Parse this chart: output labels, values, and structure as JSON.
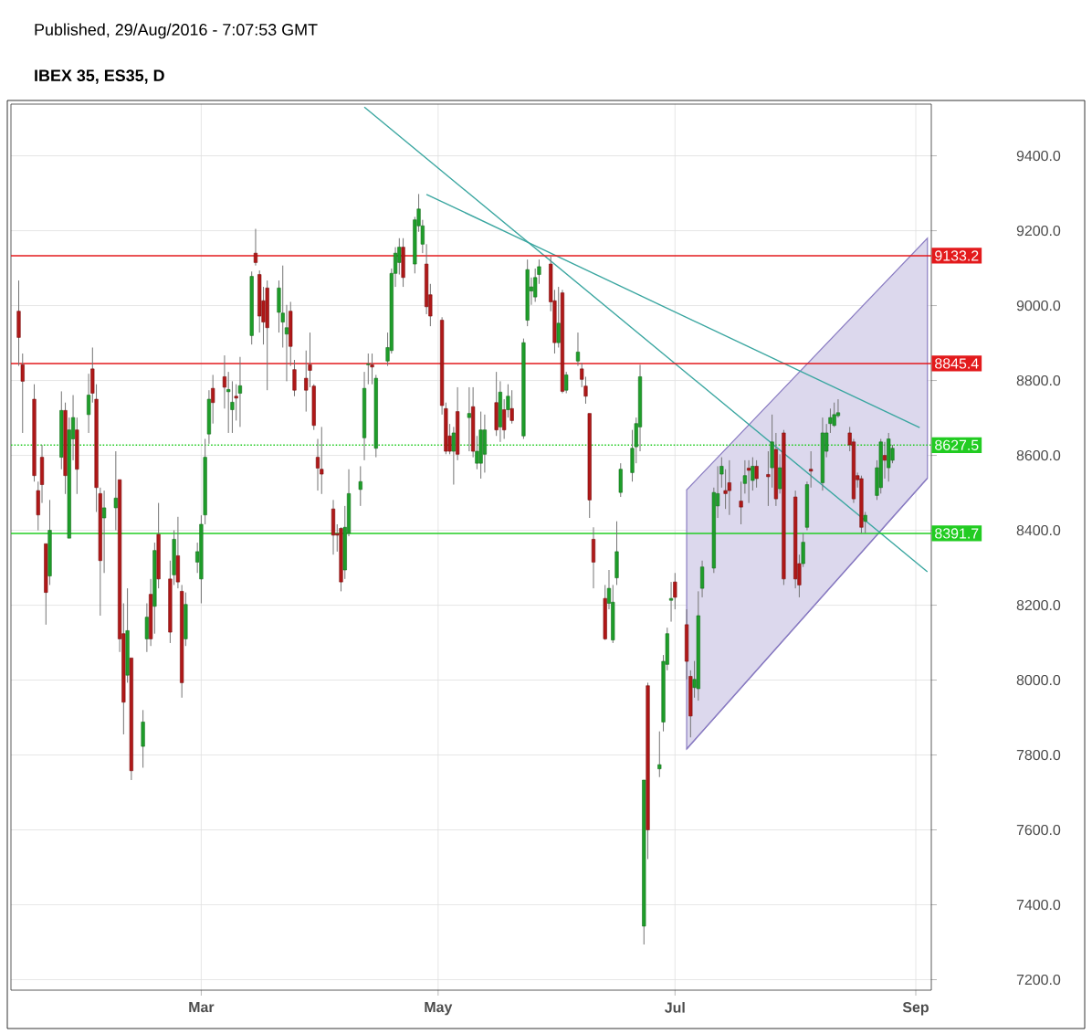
{
  "chart_data": {
    "type": "candlestick",
    "title": "IBEX 35, ES35, D",
    "annotations": [
      "Published, 29/Aug/2016 - 7:07:53 GMT"
    ],
    "x": [
      "2016-01-14",
      "2016-01-15",
      "2016-01-18",
      "2016-01-19",
      "2016-01-20",
      "2016-01-21",
      "2016-01-22",
      "2016-01-25",
      "2016-01-26",
      "2016-01-27",
      "2016-01-28",
      "2016-01-29",
      "2016-02-01",
      "2016-02-02",
      "2016-02-03",
      "2016-02-04",
      "2016-02-05",
      "2016-02-08",
      "2016-02-09",
      "2016-02-10",
      "2016-02-11",
      "2016-02-12",
      "2016-02-15",
      "2016-02-16",
      "2016-02-17",
      "2016-02-18",
      "2016-02-19",
      "2016-02-22",
      "2016-02-23",
      "2016-02-24",
      "2016-02-25",
      "2016-02-26",
      "2016-02-29",
      "2016-03-01",
      "2016-03-02",
      "2016-03-03",
      "2016-03-04",
      "2016-03-07",
      "2016-03-08",
      "2016-03-09",
      "2016-03-10",
      "2016-03-11",
      "2016-03-14",
      "2016-03-15",
      "2016-03-16",
      "2016-03-17",
      "2016-03-18",
      "2016-03-21",
      "2016-03-22",
      "2016-03-23",
      "2016-03-24",
      "2016-03-25",
      "2016-03-28",
      "2016-03-29",
      "2016-03-30",
      "2016-03-31",
      "2016-04-01",
      "2016-04-04",
      "2016-04-05",
      "2016-04-06",
      "2016-04-07",
      "2016-04-08",
      "2016-04-11",
      "2016-04-12",
      "2016-04-13",
      "2016-04-14",
      "2016-04-15",
      "2016-04-18",
      "2016-04-19",
      "2016-04-20",
      "2016-04-21",
      "2016-04-22",
      "2016-04-25",
      "2016-04-26",
      "2016-04-27",
      "2016-04-28",
      "2016-04-29",
      "2016-05-02",
      "2016-05-03",
      "2016-05-04",
      "2016-05-05",
      "2016-05-06",
      "2016-05-09",
      "2016-05-10",
      "2016-05-11",
      "2016-05-12",
      "2016-05-13",
      "2016-05-16",
      "2016-05-17",
      "2016-05-18",
      "2016-05-19",
      "2016-05-20",
      "2016-05-23",
      "2016-05-24",
      "2016-05-25",
      "2016-05-26",
      "2016-05-27",
      "2016-05-30",
      "2016-05-31",
      "2016-06-01",
      "2016-06-02",
      "2016-06-03",
      "2016-06-06",
      "2016-06-07",
      "2016-06-08",
      "2016-06-09",
      "2016-06-10",
      "2016-06-13",
      "2016-06-14",
      "2016-06-15",
      "2016-06-16",
      "2016-06-17",
      "2016-06-20",
      "2016-06-21",
      "2016-06-22",
      "2016-06-23",
      "2016-06-24",
      "2016-06-27",
      "2016-06-28",
      "2016-06-29",
      "2016-06-30",
      "2016-07-01",
      "2016-07-04",
      "2016-07-05",
      "2016-07-06",
      "2016-07-07",
      "2016-07-08",
      "2016-07-11",
      "2016-07-12",
      "2016-07-13",
      "2016-07-14",
      "2016-07-15",
      "2016-07-18",
      "2016-07-19",
      "2016-07-20",
      "2016-07-21",
      "2016-07-22",
      "2016-07-25",
      "2016-07-26",
      "2016-07-27",
      "2016-07-28",
      "2016-07-29",
      "2016-08-01",
      "2016-08-02",
      "2016-08-03",
      "2016-08-04",
      "2016-08-05",
      "2016-08-08",
      "2016-08-09",
      "2016-08-10",
      "2016-08-11",
      "2016-08-12",
      "2016-08-15",
      "2016-08-16",
      "2016-08-17",
      "2016-08-18",
      "2016-08-19",
      "2016-08-22",
      "2016-08-23",
      "2016-08-24",
      "2016-08-25",
      "2016-08-26"
    ],
    "ohlc": [
      [
        8985,
        9067,
        8839,
        8915
      ],
      [
        8842,
        8872,
        8660,
        8798
      ],
      [
        8750,
        8790,
        8530,
        8546
      ],
      [
        8506,
        8530,
        8400,
        8441
      ],
      [
        8595,
        8628,
        8473,
        8522
      ],
      [
        8364,
        8364,
        8148,
        8234
      ],
      [
        8278,
        8481,
        8254,
        8400
      ],
      [
        8595,
        8771,
        8563,
        8720
      ],
      [
        8720,
        8741,
        8497,
        8546
      ],
      [
        8379,
        8701,
        8379,
        8668
      ],
      [
        8644,
        8761,
        8587,
        8701
      ],
      [
        8668,
        8701,
        8497,
        8563
      ],
      [
        8709,
        8818,
        8660,
        8761
      ],
      [
        8831,
        8888,
        8741,
        8766
      ],
      [
        8750,
        8790,
        8449,
        8514
      ],
      [
        8498,
        8514,
        8172,
        8319
      ],
      [
        8433,
        8506,
        8286,
        8460
      ],
      [
        8460,
        8611,
        8400,
        8486
      ],
      [
        8535,
        8535,
        8075,
        8110
      ],
      [
        8124,
        8205,
        7855,
        7941
      ],
      [
        8013,
        8245,
        7993,
        8132
      ],
      [
        8059,
        8059,
        7733,
        7758
      ],
      [
        7823,
        7920,
        7766,
        7888
      ],
      [
        8110,
        8205,
        8075,
        8168
      ],
      [
        8229,
        8270,
        8091,
        8110
      ],
      [
        8197,
        8367,
        8124,
        8346
      ],
      [
        8389,
        8473,
        8245,
        8270
      ],
      [
        8270,
        8319,
        8099,
        8128
      ],
      [
        8281,
        8400,
        8254,
        8376
      ],
      [
        8332,
        8436,
        8245,
        8262
      ],
      [
        8237,
        8254,
        7953,
        7993
      ],
      [
        8110,
        8234,
        8091,
        8202
      ],
      [
        8315,
        8367,
        8286,
        8343
      ],
      [
        8270,
        8440,
        8205,
        8416
      ],
      [
        8441,
        8644,
        8416,
        8595
      ],
      [
        8657,
        8774,
        8631,
        8750
      ],
      [
        8779,
        8815,
        8685,
        8741
      ],
      [
        8810,
        8867,
        8725,
        8782
      ],
      [
        8770,
        8823,
        8660,
        8776
      ],
      [
        8722,
        8798,
        8660,
        8742
      ],
      [
        8758,
        8790,
        8693,
        8753
      ],
      [
        8766,
        8863,
        8676,
        8786
      ],
      [
        8920,
        9091,
        8896,
        9078
      ],
      [
        9140,
        9205,
        9107,
        9115
      ],
      [
        9083,
        9094,
        8928,
        8972
      ],
      [
        9013,
        9050,
        8896,
        8956
      ],
      [
        9047,
        9067,
        8774,
        8941
      ],
      [
        8982,
        9067,
        8928,
        9047
      ],
      [
        8956,
        9107,
        8888,
        8980
      ],
      [
        8924,
        9002,
        8798,
        8941
      ],
      [
        8985,
        9010,
        8839,
        8891
      ],
      [
        8829,
        8855,
        8758,
        8774
      ],
      [
        8806,
        8880,
        8717,
        8774
      ],
      [
        8842,
        8928,
        8782,
        8827
      ],
      [
        8785,
        8790,
        8668,
        8680
      ],
      [
        8595,
        8644,
        8506,
        8566
      ],
      [
        8563,
        8676,
        8497,
        8550
      ],
      [
        8457,
        8481,
        8335,
        8387
      ],
      [
        8391,
        8416,
        8343,
        8387
      ],
      [
        8405,
        8408,
        8237,
        8262
      ],
      [
        8294,
        8465,
        8270,
        8408
      ],
      [
        8392,
        8563,
        8384,
        8498
      ],
      [
        8509,
        8571,
        8465,
        8530
      ],
      [
        8647,
        8823,
        8587,
        8779
      ],
      [
        8842,
        8872,
        8790,
        8844
      ],
      [
        8842,
        8872,
        8790,
        8836
      ],
      [
        8619,
        8815,
        8595,
        8806
      ],
      [
        8852,
        8928,
        8839,
        8888
      ],
      [
        8880,
        9099,
        8872,
        9086
      ],
      [
        9086,
        9156,
        9050,
        9140
      ],
      [
        9115,
        9180,
        9083,
        9156
      ],
      [
        9156,
        9180,
        9050,
        9075
      ],
      [
        9111,
        9237,
        9086,
        9229
      ],
      [
        9213,
        9298,
        9197,
        9258
      ],
      [
        9164,
        9229,
        9140,
        9213
      ],
      [
        9111,
        9164,
        8977,
        8997
      ],
      [
        9029,
        9058,
        8945,
        8972
      ],
      [
        8961,
        8969,
        8709,
        8733
      ],
      [
        8725,
        8741,
        8603,
        8611
      ],
      [
        8652,
        8684,
        8603,
        8611
      ],
      [
        8611,
        8676,
        8522,
        8660
      ],
      [
        8717,
        8782,
        8587,
        8603
      ],
      [
        8701,
        8782,
        8611,
        8712
      ],
      [
        8730,
        8782,
        8595,
        8611
      ],
      [
        8579,
        8652,
        8563,
        8611
      ],
      [
        8579,
        8717,
        8538,
        8668
      ],
      [
        8603,
        8709,
        8554,
        8668
      ],
      [
        8741,
        8823,
        8652,
        8668
      ],
      [
        8676,
        8798,
        8636,
        8769
      ],
      [
        8722,
        8750,
        8644,
        8668
      ],
      [
        8722,
        8790,
        8701,
        8758
      ],
      [
        8725,
        8774,
        8685,
        8693
      ],
      [
        8652,
        8912,
        8644,
        8901
      ],
      [
        8961,
        9123,
        8945,
        9096
      ],
      [
        9039,
        9075,
        9002,
        9050
      ],
      [
        9023,
        9099,
        9010,
        9075
      ],
      [
        9083,
        9123,
        9058,
        9104
      ],
      [
        9111,
        9131,
        8985,
        9010
      ],
      [
        9013,
        9042,
        8872,
        8901
      ],
      [
        8901,
        9050,
        8888,
        8953
      ],
      [
        9034,
        9042,
        8766,
        8771
      ],
      [
        8774,
        8823,
        8766,
        8815
      ],
      [
        8852,
        8928,
        8839,
        8876
      ],
      [
        8831,
        8847,
        8782,
        8803
      ],
      [
        8785,
        8810,
        8738,
        8758
      ],
      [
        8712,
        8712,
        8433,
        8481
      ],
      [
        8376,
        8408,
        8245,
        8315
      ],
      [
        8218,
        8254,
        8107,
        8110
      ],
      [
        8205,
        8294,
        8189,
        8245
      ],
      [
        8107,
        8254,
        8099,
        8208
      ],
      [
        8273,
        8424,
        8254,
        8343
      ],
      [
        8501,
        8579,
        8489,
        8563
      ],
      [
        8554,
        8668,
        8530,
        8619
      ],
      [
        8623,
        8701,
        8579,
        8685
      ],
      [
        8676,
        8842,
        8611,
        8810
      ],
      [
        7343,
        7733,
        7294,
        7733
      ],
      [
        7985,
        7993,
        7522,
        7600
      ],
      [
        7763,
        7863,
        7741,
        7774
      ],
      [
        7888,
        8067,
        7863,
        8050
      ],
      [
        8042,
        8140,
        8026,
        8124
      ],
      [
        8213,
        8262,
        8156,
        8218
      ],
      [
        8262,
        8286,
        8189,
        8221
      ],
      [
        8148,
        8189,
        8002,
        8050
      ],
      [
        8010,
        8026,
        7847,
        7904
      ],
      [
        7980,
        8051,
        7953,
        8002
      ],
      [
        7977,
        8237,
        7945,
        8172
      ],
      [
        8245,
        8319,
        8221,
        8302
      ],
      [
        8299,
        8514,
        8286,
        8501
      ],
      [
        8465,
        8571,
        8433,
        8498
      ],
      [
        8550,
        8595,
        8514,
        8571
      ],
      [
        8506,
        8563,
        8457,
        8498
      ],
      [
        8527,
        8587,
        8441,
        8506
      ],
      [
        8478,
        8530,
        8416,
        8462
      ],
      [
        8525,
        8587,
        8498,
        8546
      ],
      [
        8566,
        8587,
        8473,
        8560
      ],
      [
        8533,
        8595,
        8506,
        8571
      ],
      [
        8571,
        8587,
        8514,
        8538
      ],
      [
        8549,
        8611,
        8465,
        8543
      ],
      [
        8567,
        8709,
        8514,
        8636
      ],
      [
        8616,
        8660,
        8465,
        8484
      ],
      [
        8511,
        8603,
        8498,
        8567
      ],
      [
        8660,
        8668,
        8254,
        8270
      ],
      [
        8489,
        8506,
        8245,
        8270
      ],
      [
        8311,
        8335,
        8221,
        8254
      ],
      [
        8311,
        8392,
        8302,
        8368
      ],
      [
        8408,
        8530,
        8400,
        8522
      ],
      [
        8563,
        8611,
        8514,
        8558
      ],
      [
        8527,
        8701,
        8506,
        8660
      ],
      [
        8611,
        8684,
        8595,
        8660
      ],
      [
        8685,
        8725,
        8660,
        8701
      ],
      [
        8680,
        8741,
        8676,
        8709
      ],
      [
        8706,
        8750,
        8701,
        8714
      ],
      [
        8660,
        8676,
        8611,
        8628
      ],
      [
        8636,
        8644,
        8473,
        8484
      ],
      [
        8546,
        8554,
        8514,
        8535
      ],
      [
        8538,
        8546,
        8392,
        8408
      ],
      [
        8424,
        8449,
        8392,
        8440
      ],
      [
        8493,
        8587,
        8481,
        8567
      ],
      [
        8514,
        8644,
        8498,
        8636
      ],
      [
        8600,
        8636,
        8538,
        8587
      ],
      [
        8567,
        8660,
        8530,
        8644
      ],
      [
        8587,
        8628,
        8579,
        8619
      ]
    ],
    "series": [
      {
        "type": "line",
        "color": "#8a7cc2",
        "x": [
          "2016-07-04",
          "2016-09-04"
        ],
        "values": [
          7816,
          8539
        ],
        "lower": [
          7816,
          8539
        ],
        "upper": [
          8508,
          9180
        ]
      },
      {
        "type": "line",
        "color": "#3aa6a0",
        "x": [
          "2016-04-28",
          "2016-09-02"
        ],
        "values": [
          9297,
          8674
        ]
      },
      {
        "type": "line",
        "color": "#3aa6a0",
        "x": [
          "2016-04-12",
          "2016-09-04"
        ],
        "values": [
          9530,
          8289
        ]
      }
    ],
    "ref_lines": [
      {
        "axis": "y",
        "value": 9133.2,
        "label": "9133.2",
        "color": "#e31a1c",
        "line_style": "solid"
      },
      {
        "axis": "y",
        "value": 8845.4,
        "label": "8845.4",
        "color": "#e31a1c",
        "line_style": "solid"
      },
      {
        "axis": "y",
        "value": 8627.5,
        "label": "8627.5",
        "color": "#22cc22",
        "line_style": "dotted"
      },
      {
        "axis": "y",
        "value": 8391.7,
        "label": "8391.7",
        "color": "#22cc22",
        "line_style": "solid"
      }
    ],
    "xlim": [
      "2016-01-12",
      "2016-09-05"
    ],
    "xticks": [
      {
        "value": "2016-03-01",
        "label": "Mar"
      },
      {
        "value": "2016-05-01",
        "label": "May"
      },
      {
        "value": "2016-07-01",
        "label": "Jul"
      },
      {
        "value": "2016-09-01",
        "label": "Sep"
      }
    ],
    "ylim": [
      7172,
      9538
    ],
    "yticks": [
      {
        "value": 7200,
        "label": "7200.0"
      },
      {
        "value": 7400,
        "label": "7400.0"
      },
      {
        "value": 7600,
        "label": "7600.0"
      },
      {
        "value": 7800,
        "label": "7800.0"
      },
      {
        "value": 8000,
        "label": "8000.0"
      },
      {
        "value": 8200,
        "label": "8200.0"
      },
      {
        "value": 8400,
        "label": "8400.0"
      },
      {
        "value": 8600,
        "label": "8600.0"
      },
      {
        "value": 8800,
        "label": "8800.0"
      },
      {
        "value": 9000,
        "label": "9000.0"
      },
      {
        "value": 9200,
        "label": "9200.0"
      },
      {
        "value": 9400,
        "label": "9400.0"
      }
    ],
    "grid": true
  }
}
